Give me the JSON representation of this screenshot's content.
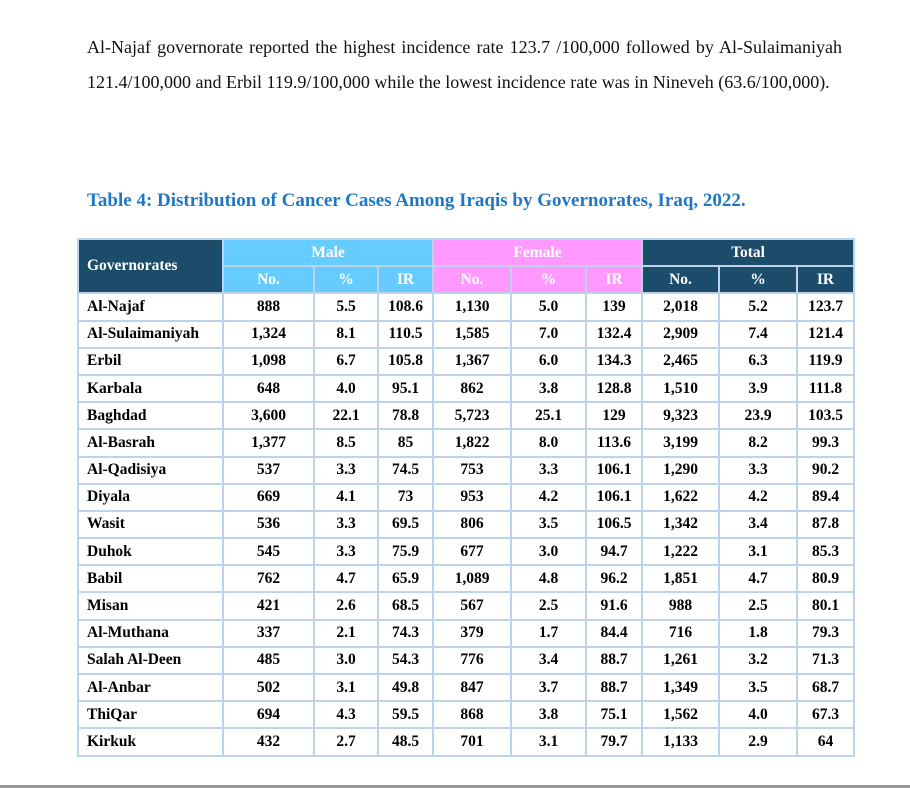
{
  "paragraph": "Al-Najaf governorate reported the highest incidence rate 123.7 /100,000 followed by Al-Sulaimaniyah 121.4/100,000 and Erbil 119.9/100,000 while the lowest incidence rate was in Nineveh (63.6/100,000).",
  "table_title": "Table 4: Distribution of Cancer Cases Among Iraqis by Governorates, Iraq, 2022.",
  "colors": {
    "header_dark": "#1b4d6a",
    "male": "#66ccff",
    "female": "#ff99ff",
    "title": "#1f78c4"
  },
  "headers": {
    "governorates": "Governorates",
    "male": "Male",
    "female": "Female",
    "total": "Total",
    "sub": [
      "No.",
      "%",
      "IR",
      "No.",
      "%",
      "IR",
      "No.",
      "%",
      "IR"
    ]
  },
  "rows": [
    [
      "Al-Najaf",
      "888",
      "5.5",
      "108.6",
      "1,130",
      "5.0",
      "139",
      "2,018",
      "5.2",
      "123.7"
    ],
    [
      "Al-Sulaimaniyah",
      "1,324",
      "8.1",
      "110.5",
      "1,585",
      "7.0",
      "132.4",
      "2,909",
      "7.4",
      "121.4"
    ],
    [
      "Erbil",
      "1,098",
      "6.7",
      "105.8",
      "1,367",
      "6.0",
      "134.3",
      "2,465",
      "6.3",
      "119.9"
    ],
    [
      "Karbala",
      "648",
      "4.0",
      "95.1",
      "862",
      "3.8",
      "128.8",
      "1,510",
      "3.9",
      "111.8"
    ],
    [
      "Baghdad",
      "3,600",
      "22.1",
      "78.8",
      "5,723",
      "25.1",
      "129",
      "9,323",
      "23.9",
      "103.5"
    ],
    [
      "Al-Basrah",
      "1,377",
      "8.5",
      "85",
      "1,822",
      "8.0",
      "113.6",
      "3,199",
      "8.2",
      "99.3"
    ],
    [
      "Al-Qadisiya",
      "537",
      "3.3",
      "74.5",
      "753",
      "3.3",
      "106.1",
      "1,290",
      "3.3",
      "90.2"
    ],
    [
      "Diyala",
      "669",
      "4.1",
      "73",
      "953",
      "4.2",
      "106.1",
      "1,622",
      "4.2",
      "89.4"
    ],
    [
      "Wasit",
      "536",
      "3.3",
      "69.5",
      "806",
      "3.5",
      "106.5",
      "1,342",
      "3.4",
      "87.8"
    ],
    [
      "Duhok",
      "545",
      "3.3",
      "75.9",
      "677",
      "3.0",
      "94.7",
      "1,222",
      "3.1",
      "85.3"
    ],
    [
      "Babil",
      "762",
      "4.7",
      "65.9",
      "1,089",
      "4.8",
      "96.2",
      "1,851",
      "4.7",
      "80.9"
    ],
    [
      "Misan",
      "421",
      "2.6",
      "68.5",
      "567",
      "2.5",
      "91.6",
      "988",
      "2.5",
      "80.1"
    ],
    [
      "Al-Muthana",
      "337",
      "2.1",
      "74.3",
      "379",
      "1.7",
      "84.4",
      "716",
      "1.8",
      "79.3"
    ],
    [
      "Salah Al-Deen",
      "485",
      "3.0",
      "54.3",
      "776",
      "3.4",
      "88.7",
      "1,261",
      "3.2",
      "71.3"
    ],
    [
      "Al-Anbar",
      "502",
      "3.1",
      "49.8",
      "847",
      "3.7",
      "88.7",
      "1,349",
      "3.5",
      "68.7"
    ],
    [
      "ThiQar",
      "694",
      "4.3",
      "59.5",
      "868",
      "3.8",
      "75.1",
      "1,562",
      "4.0",
      "67.3"
    ],
    [
      "Kirkuk",
      "432",
      "2.7",
      "48.5",
      "701",
      "3.1",
      "79.7",
      "1,133",
      "2.9",
      "64"
    ]
  ]
}
